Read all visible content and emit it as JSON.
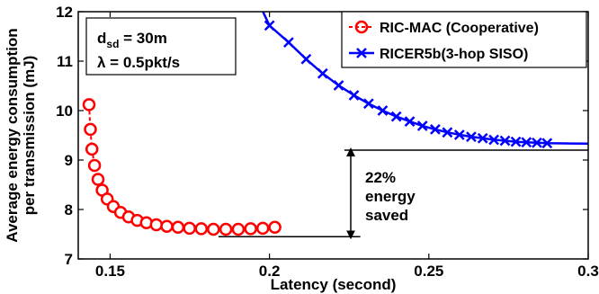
{
  "chart_data": {
    "type": "line",
    "xlabel": "Latency (second)",
    "ylabel_lines": [
      "Average energy consumption",
      "per transmission (mJ)"
    ],
    "xlim": [
      0.14,
      0.3
    ],
    "ylim": [
      7,
      12
    ],
    "xticks": [
      0.15,
      0.2,
      0.25,
      0.3
    ],
    "xtick_labels": [
      "0.15",
      "0.2",
      "0.25",
      "0.3"
    ],
    "yticks": [
      7,
      8,
      9,
      10,
      11,
      12
    ],
    "ytick_labels": [
      "7",
      "8",
      "9",
      "10",
      "11",
      "12"
    ],
    "grid": false,
    "legend_position": "top-right",
    "series": [
      {
        "name": "RIC-MAC (Cooperative)",
        "color": "#ff0000",
        "marker": "circle",
        "x": [
          0.1434,
          0.1438,
          0.1443,
          0.1451,
          0.1462,
          0.1475,
          0.1491,
          0.151,
          0.1533,
          0.1558,
          0.1585,
          0.1614,
          0.1645,
          0.1678,
          0.1713,
          0.1749,
          0.1786,
          0.1824,
          0.1863,
          0.1902,
          0.1941,
          0.1979,
          0.2017
        ],
        "y": [
          10.12,
          9.62,
          9.22,
          8.89,
          8.61,
          8.39,
          8.21,
          8.06,
          7.94,
          7.85,
          7.78,
          7.73,
          7.69,
          7.66,
          7.64,
          7.62,
          7.61,
          7.6,
          7.6,
          7.6,
          7.61,
          7.62,
          7.64
        ]
      },
      {
        "name": "RICER5b(3-hop SISO)",
        "color": "#0000ff",
        "marker": "x",
        "x": [
          0.2,
          0.206,
          0.2115,
          0.2167,
          0.2217,
          0.2265,
          0.2311,
          0.2355,
          0.2398,
          0.244,
          0.248,
          0.252,
          0.2558,
          0.2596,
          0.2633,
          0.2669,
          0.2704,
          0.2739,
          0.2773,
          0.2806,
          0.2839,
          0.2871
        ],
        "y": [
          11.72,
          11.38,
          11.04,
          10.75,
          10.51,
          10.31,
          10.14,
          10.0,
          9.88,
          9.78,
          9.69,
          9.62,
          9.56,
          9.51,
          9.47,
          9.44,
          9.41,
          9.39,
          9.37,
          9.36,
          9.35,
          9.34
        ]
      }
    ],
    "annotation_box": {
      "d_main": "d",
      "d_sub": "sd",
      "d_value": " = 30m",
      "lambda_line": "λ = 0.5pkt/s"
    },
    "saving_annotation": {
      "lines": [
        "22%",
        "energy",
        "saved"
      ],
      "upper_y": 9.2,
      "lower_y": 7.45,
      "arrow_x": 0.2255,
      "upper_x_range": [
        0.2235,
        0.3
      ],
      "lower_x_range": [
        0.184,
        0.2285
      ]
    }
  }
}
